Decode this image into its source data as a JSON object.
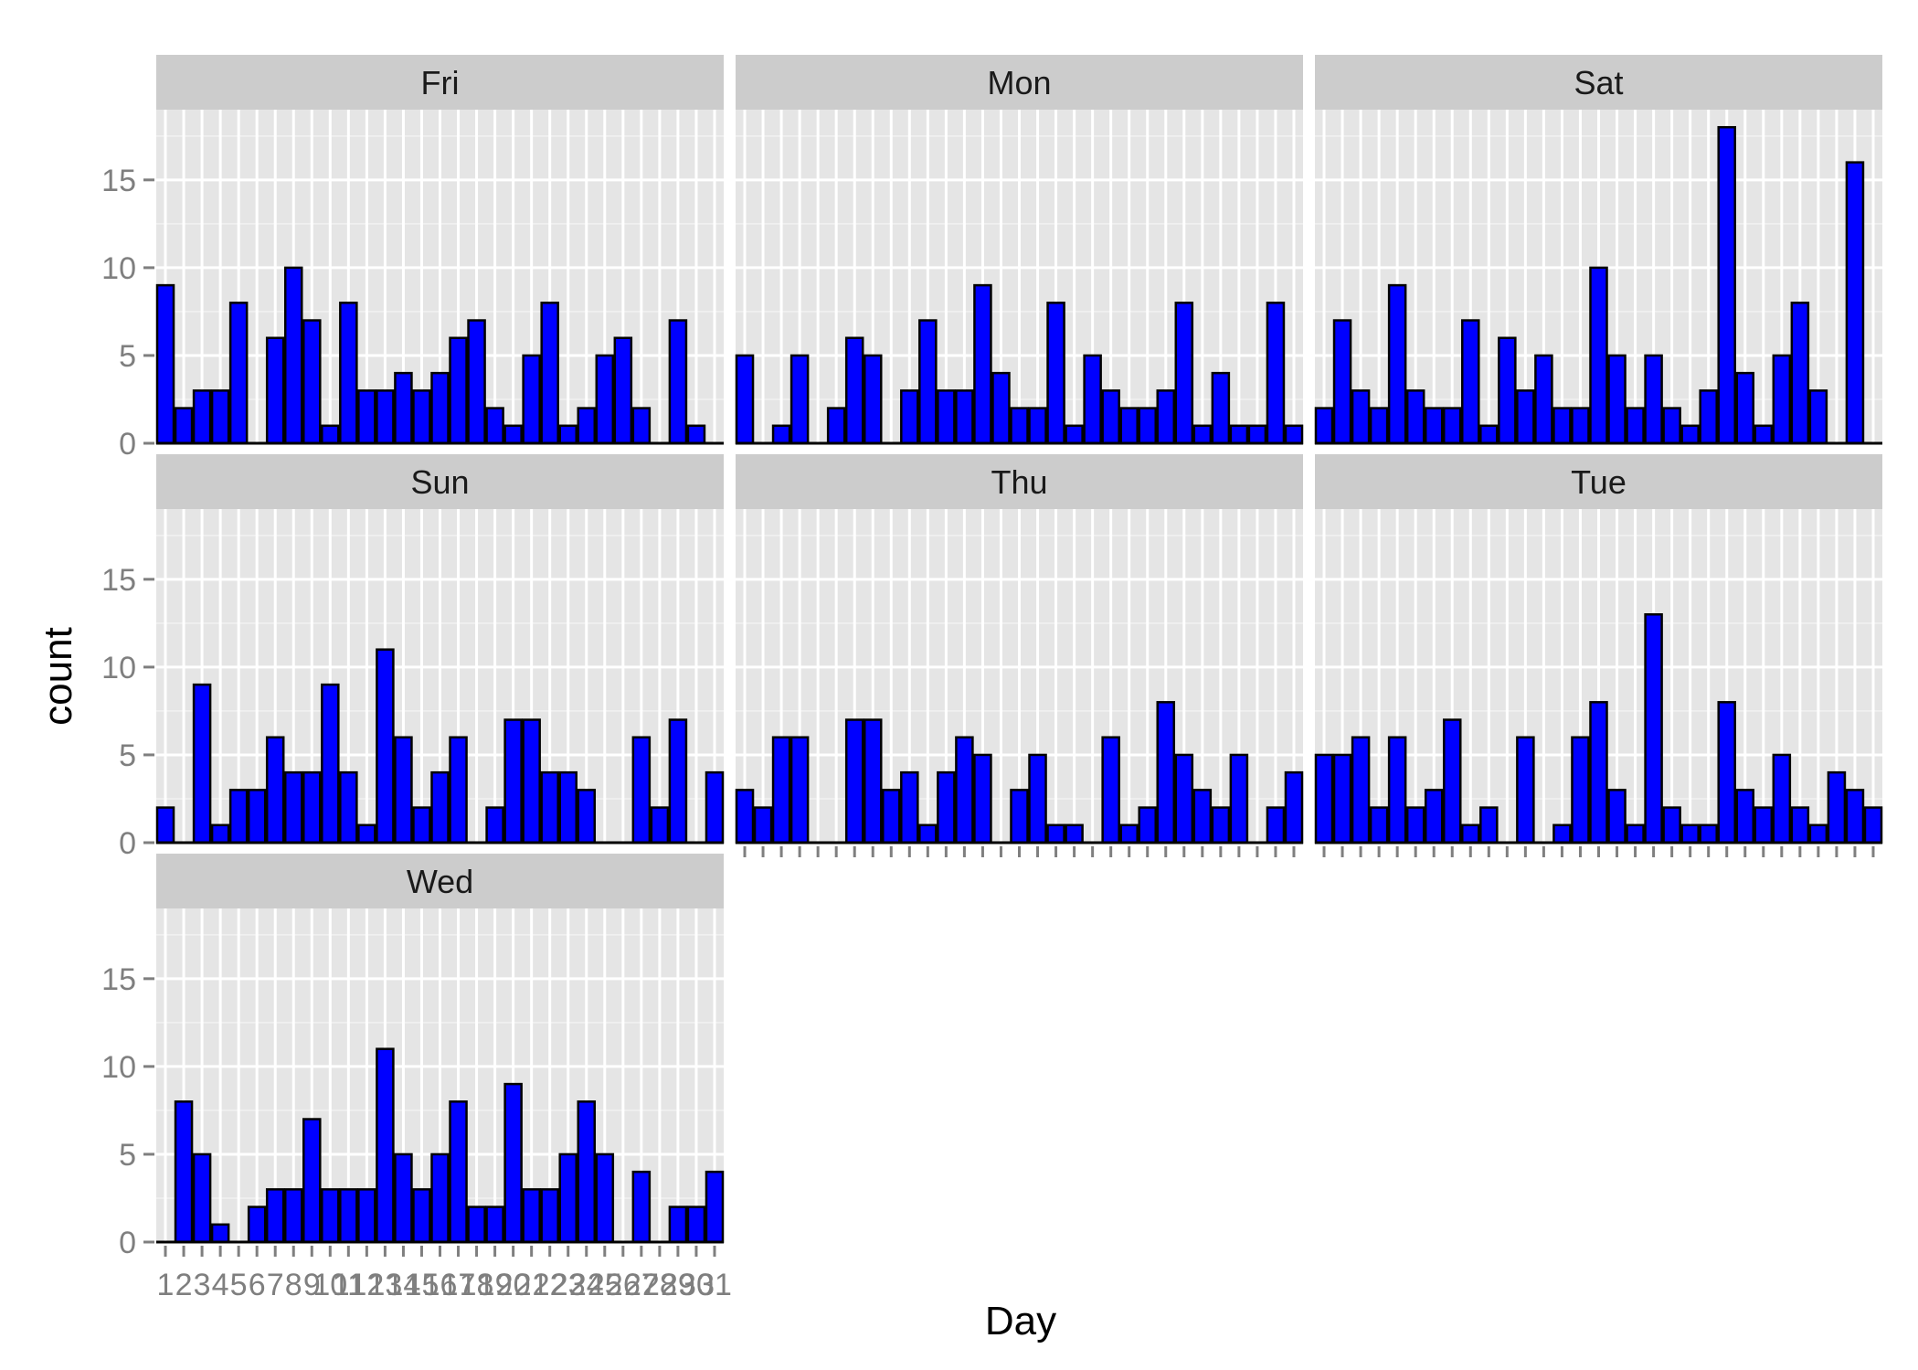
{
  "chart_data": {
    "type": "bar",
    "layout": "faceted 3x3 (facet_wrap)",
    "xlabel": "Day",
    "ylabel": "count",
    "ylim": [
      0,
      19
    ],
    "yticks": [
      0,
      5,
      10,
      15
    ],
    "x_categories": [
      "1",
      "2",
      "3",
      "4",
      "5",
      "6",
      "7",
      "8",
      "9",
      "10",
      "11",
      "12",
      "13",
      "14",
      "15",
      "16",
      "17",
      "18",
      "19",
      "20",
      "21",
      "22",
      "23",
      "24",
      "25",
      "26",
      "27",
      "28",
      "29",
      "30",
      "31"
    ],
    "colors": {
      "bar_fill": "#0000ff",
      "bar_stroke": "#000000",
      "panel_bg": "#e5e5e5",
      "strip_bg": "#cccccc",
      "grid": "#ffffff"
    },
    "facets": [
      {
        "name": "Fri",
        "values": [
          9,
          2,
          3,
          3,
          8,
          0,
          6,
          10,
          7,
          1,
          8,
          3,
          3,
          4,
          3,
          4,
          6,
          7,
          2,
          1,
          5,
          8,
          1,
          2,
          5,
          6,
          2,
          0,
          7,
          1,
          0
        ]
      },
      {
        "name": "Mon",
        "values": [
          5,
          0,
          1,
          5,
          0,
          2,
          6,
          5,
          0,
          3,
          7,
          3,
          3,
          9,
          4,
          2,
          2,
          8,
          1,
          5,
          3,
          2,
          2,
          3,
          8,
          1,
          4,
          1,
          1,
          8,
          1
        ]
      },
      {
        "name": "Sat",
        "values": [
          2,
          7,
          3,
          2,
          9,
          3,
          2,
          2,
          7,
          1,
          6,
          3,
          5,
          2,
          2,
          10,
          5,
          2,
          5,
          2,
          1,
          3,
          18,
          4,
          1,
          5,
          8,
          3,
          0,
          16,
          0
        ]
      },
      {
        "name": "Sun",
        "values": [
          2,
          0,
          9,
          1,
          3,
          3,
          6,
          4,
          4,
          9,
          4,
          1,
          11,
          6,
          2,
          4,
          6,
          0,
          2,
          7,
          7,
          4,
          4,
          3,
          0,
          0,
          6,
          2,
          7,
          0,
          4
        ]
      },
      {
        "name": "Thu",
        "values": [
          3,
          2,
          6,
          6,
          0,
          0,
          7,
          7,
          3,
          4,
          1,
          4,
          6,
          5,
          0,
          3,
          5,
          1,
          1,
          0,
          6,
          1,
          2,
          8,
          5,
          3,
          2,
          5,
          0,
          2,
          4
        ]
      },
      {
        "name": "Tue",
        "values": [
          5,
          5,
          6,
          2,
          6,
          2,
          3,
          7,
          1,
          2,
          0,
          6,
          0,
          1,
          6,
          8,
          3,
          1,
          13,
          2,
          1,
          1,
          8,
          3,
          2,
          5,
          2,
          1,
          4,
          3,
          2
        ]
      },
      {
        "name": "Wed",
        "values": [
          0,
          8,
          5,
          1,
          0,
          2,
          3,
          3,
          7,
          3,
          3,
          3,
          11,
          5,
          3,
          5,
          8,
          2,
          2,
          9,
          3,
          3,
          5,
          8,
          5,
          0,
          4,
          0,
          2,
          2,
          4
        ]
      }
    ]
  }
}
